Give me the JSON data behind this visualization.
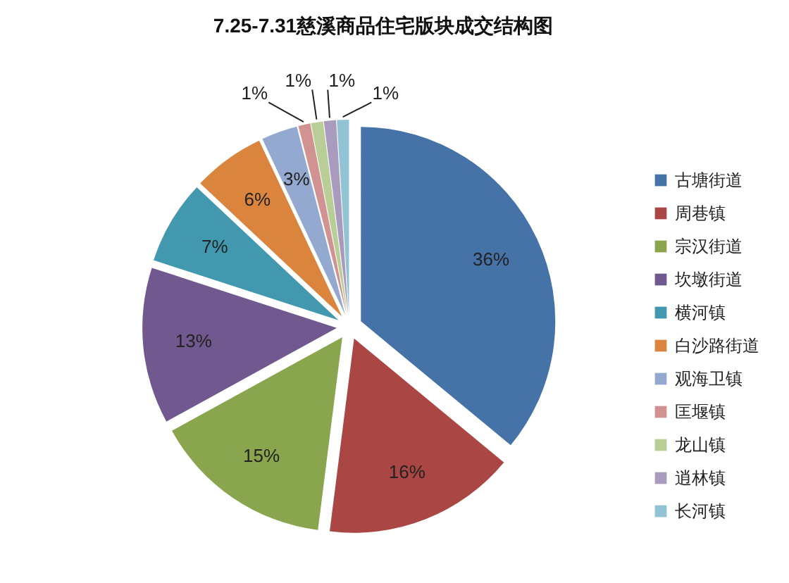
{
  "chart_data": {
    "type": "pie",
    "title": "7.25-7.31慈溪商品住宅版块成交结构图",
    "categories": [
      "古塘街道",
      "周巷镇",
      "宗汉街道",
      "坎墩街道",
      "横河镇",
      "白沙路街道",
      "观海卫镇",
      "匡堰镇",
      "龙山镇",
      "逍林镇",
      "长河镇"
    ],
    "values": [
      36,
      16,
      15,
      13,
      7,
      6,
      3,
      1,
      1,
      1,
      1
    ],
    "colors": [
      "#4572a7",
      "#aa4643",
      "#89a54e",
      "#71588f",
      "#4198af",
      "#db843d",
      "#93a9cf",
      "#d19392",
      "#b9cd96",
      "#a99bbd",
      "#92c3d5"
    ],
    "value_labels": [
      "36%",
      "16%",
      "15%",
      "13%",
      "7%",
      "6%",
      "3%",
      "1%",
      "1%",
      "1%",
      "1%"
    ],
    "legend": "right"
  }
}
